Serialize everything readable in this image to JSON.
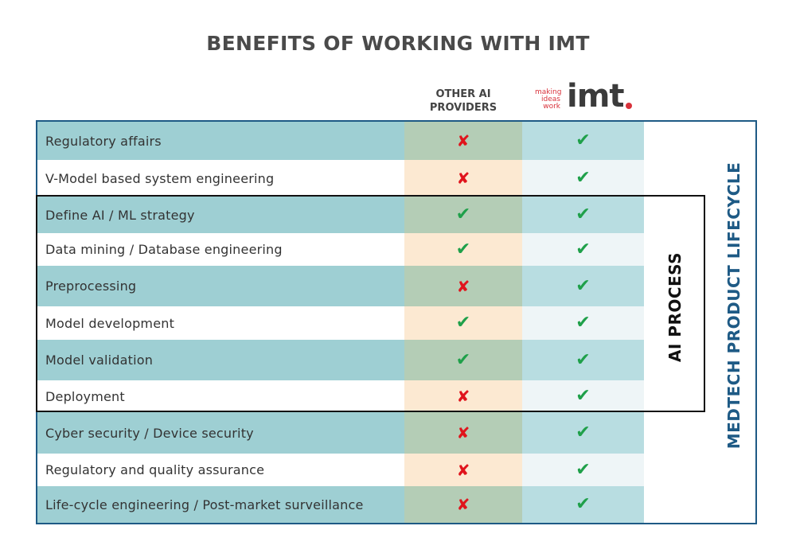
{
  "title": "BENEFITS OF WORKING WITH IMT",
  "columns": {
    "other": [
      "OTHER AI",
      "PROVIDERS"
    ],
    "imt_logo": {
      "tagline": [
        "making",
        "ideas",
        "work"
      ],
      "wordmark": "imt"
    }
  },
  "rows": [
    {
      "label": "Regulatory affairs",
      "other": "✘",
      "imt": "✔"
    },
    {
      "label": "V-Model based system engineering",
      "other": "✘",
      "imt": "✔"
    },
    {
      "label": "Define AI / ML strategy",
      "other": "✔",
      "imt": "✔"
    },
    {
      "label": "Data mining / Database engineering",
      "other": "✔",
      "imt": "✔"
    },
    {
      "label": "Preprocessing",
      "other": "✘",
      "imt": "✔"
    },
    {
      "label": "Model development",
      "other": "✔",
      "imt": "✔"
    },
    {
      "label": "Model validation",
      "other": "✔",
      "imt": "✔"
    },
    {
      "label": "Deployment",
      "other": "✘",
      "imt": "✔"
    },
    {
      "label": "Cyber security / Device security",
      "other": "✘",
      "imt": "✔"
    },
    {
      "label": "Regulatory and quality assurance",
      "other": "✘",
      "imt": "✔"
    },
    {
      "label": "Life-cycle engineering / Post-market surveillance",
      "other": "✘",
      "imt": "✔"
    }
  ],
  "groups": {
    "ai_process": "AI PROCESS",
    "lifecycle": "MEDTECH PRODUCT LIFECYCLE"
  },
  "colors": {
    "cross": "#e0141c",
    "check": "#1fa04a",
    "frame": "#1e5a85",
    "brand_red": "#d8323b"
  }
}
